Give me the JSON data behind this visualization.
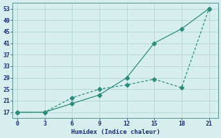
{
  "xlabel": "Humidex (Indice chaleur)",
  "line1_x": [
    0,
    3,
    6,
    9,
    12,
    15,
    18,
    21
  ],
  "line1_y": [
    17,
    17,
    20,
    23,
    29,
    41,
    46,
    53
  ],
  "line2_x": [
    0,
    3,
    6,
    9,
    12,
    15,
    18,
    21
  ],
  "line2_y": [
    17,
    17,
    22,
    25,
    26.5,
    28.5,
    25.5,
    53
  ],
  "line_color": "#2d8b7a",
  "bg_color": "#d6efee",
  "grid_color": "#b8d8d5",
  "xlim": [
    -0.5,
    22
  ],
  "ylim": [
    15,
    55
  ],
  "xticks": [
    0,
    3,
    6,
    9,
    12,
    15,
    18,
    21
  ],
  "yticks": [
    17,
    21,
    25,
    29,
    33,
    37,
    41,
    45,
    49,
    53
  ],
  "markersize": 3.0
}
